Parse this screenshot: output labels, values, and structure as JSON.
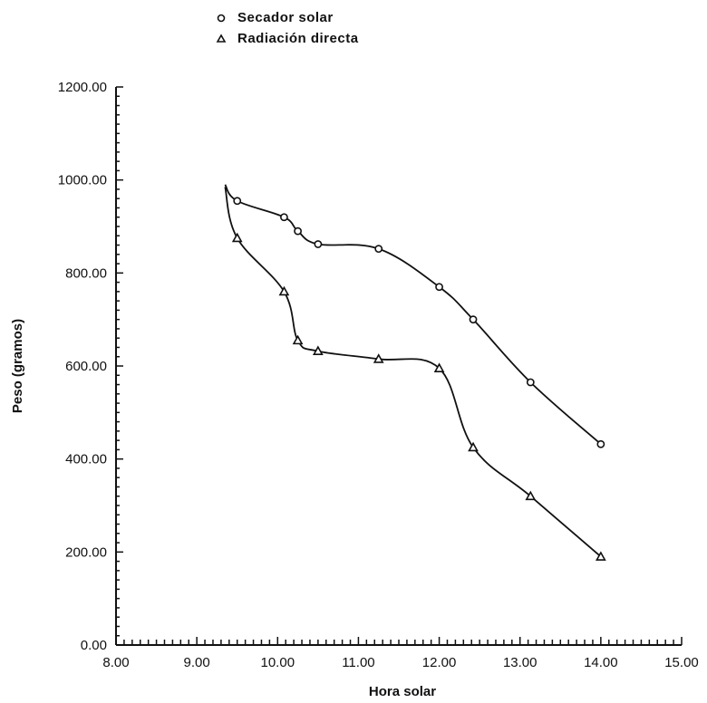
{
  "chart_data": {
    "type": "line",
    "title": "",
    "xlabel": "Hora solar",
    "ylabel": "Peso (gramos)",
    "xlim": [
      8.0,
      15.0
    ],
    "ylim": [
      0.0,
      1200.0
    ],
    "x_ticks": [
      "8.00",
      "9.00",
      "10.00",
      "11.00",
      "12.00",
      "13.00",
      "14.00",
      "15.00"
    ],
    "y_ticks": [
      "0.00",
      "200.00",
      "400.00",
      "600.00",
      "800.00",
      "1000.00",
      "1200.00"
    ],
    "grid": false,
    "legend_position": "top-left",
    "series": [
      {
        "name": "Secador solar",
        "marker": "circle",
        "x": [
          9.35,
          9.5,
          10.08,
          10.25,
          10.5,
          11.25,
          12.0,
          12.42,
          13.13,
          14.0
        ],
        "y": [
          990,
          955,
          920,
          890,
          862,
          852,
          770,
          700,
          565,
          432
        ]
      },
      {
        "name": "Radiación directa",
        "marker": "triangle",
        "x": [
          9.35,
          9.5,
          10.08,
          10.25,
          10.5,
          11.25,
          12.0,
          12.42,
          13.13,
          14.0
        ],
        "y": [
          985,
          875,
          760,
          655,
          632,
          615,
          595,
          425,
          320,
          190
        ]
      }
    ]
  }
}
